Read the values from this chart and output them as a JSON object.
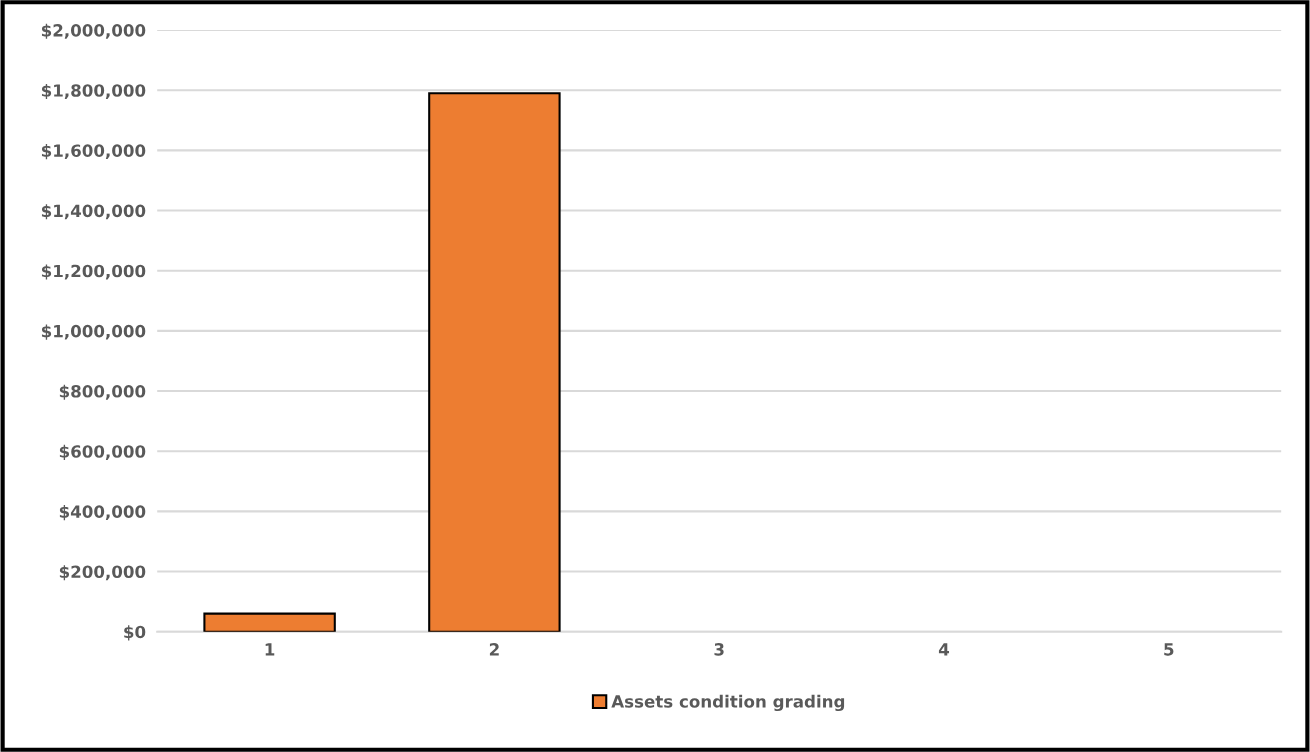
{
  "chart_data": {
    "type": "bar",
    "categories": [
      "1",
      "2",
      "3",
      "4",
      "5"
    ],
    "series": [
      {
        "name": "Assets condition grading",
        "color": "#ed7d31",
        "values": [
          60000,
          1790000,
          null,
          null,
          null
        ]
      }
    ],
    "ylim": [
      0,
      2000000
    ],
    "yticks": [
      {
        "value": 0,
        "label": "$0"
      },
      {
        "value": 200000,
        "label": "$200,000"
      },
      {
        "value": 400000,
        "label": "$400,000"
      },
      {
        "value": 600000,
        "label": "$600,000"
      },
      {
        "value": 800000,
        "label": "$800,000"
      },
      {
        "value": 1000000,
        "label": "$1,000,000"
      },
      {
        "value": 1200000,
        "label": "$1,200,000"
      },
      {
        "value": 1400000,
        "label": "$1,400,000"
      },
      {
        "value": 1600000,
        "label": "$1,600,000"
      },
      {
        "value": 1800000,
        "label": "$1,800,000"
      },
      {
        "value": 2000000,
        "label": "$2,000,000"
      }
    ],
    "grid": "y",
    "legend": "bottom"
  }
}
